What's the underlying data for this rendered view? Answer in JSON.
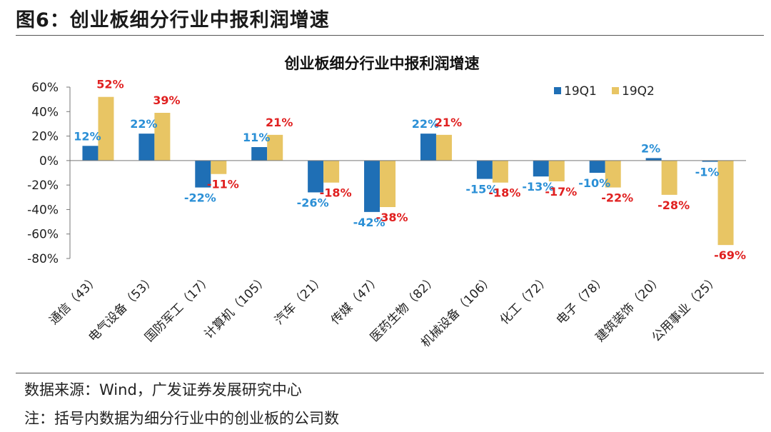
{
  "figure": {
    "title": "图6：创业板细分行业中报利润增速",
    "source": "数据来源：Wind，广发证券发展研究中心",
    "note": "注：括号内数据为细分行业中的创业板的公司数"
  },
  "colors": {
    "q1": "#1f6fb5",
    "q2": "#e8c564",
    "neg_label": "#e02020",
    "pos_label_q1": "#2a8fd6"
  },
  "chart_data": {
    "type": "bar",
    "title": "创业板细分行业中报利润增速",
    "categories": [
      "通信（43）",
      "电气设备（53）",
      "国防军工（17）",
      "计算机（105）",
      "汽车（21）",
      "传媒（47）",
      "医药生物（82）",
      "机械设备（106）",
      "化工（72）",
      "电子（78）",
      "建筑装饰（20）",
      "公用事业（25）"
    ],
    "series": [
      {
        "name": "19Q1",
        "values": [
          12,
          22,
          -22,
          11,
          -26,
          -42,
          22,
          -15,
          -13,
          -10,
          2,
          -1
        ]
      },
      {
        "name": "19Q2",
        "values": [
          52,
          39,
          -11,
          21,
          -18,
          -38,
          21,
          -18,
          -17,
          -22,
          -28,
          -69
        ]
      }
    ],
    "data_labels": {
      "19Q1": [
        "12%",
        "22%",
        "-22%",
        "11%",
        "-26%",
        "-42%",
        "22%",
        "-15%",
        "-13%",
        "-10%",
        "2%",
        "-1%"
      ],
      "19Q2": [
        "52%",
        "39%",
        "-11%",
        "21%",
        "-18%",
        "-38%",
        "21%",
        "-18%",
        "-17%",
        "-22%",
        "-28%",
        "-69%"
      ]
    },
    "ylim": [
      -80,
      60
    ],
    "yticks": [
      "60%",
      "40%",
      "20%",
      "0%",
      "-20%",
      "-40%",
      "-60%",
      "-80%"
    ],
    "ytick_values": [
      60,
      40,
      20,
      0,
      -20,
      -40,
      -60,
      -80
    ],
    "legend_position": "top-right",
    "grid": false,
    "xlabel": "",
    "ylabel": ""
  }
}
